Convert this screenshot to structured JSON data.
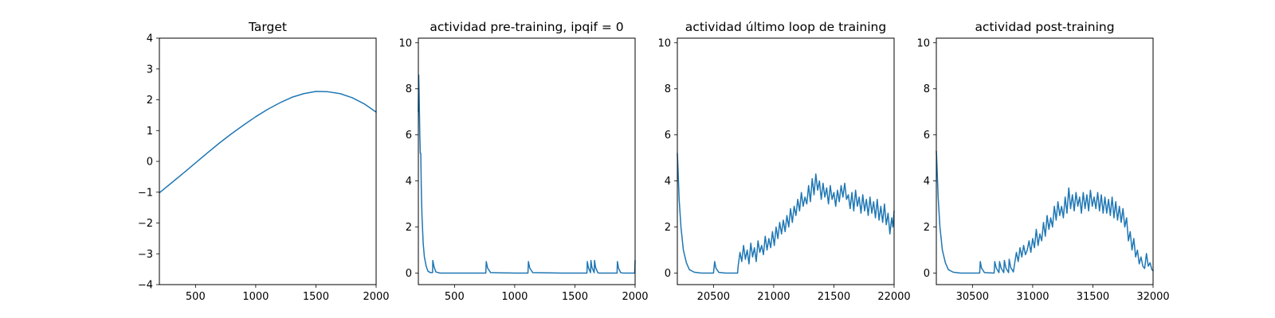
{
  "colors": {
    "series": "#1f77b4",
    "axes": "#000000",
    "background": "#ffffff"
  },
  "chart_data": [
    {
      "type": "line",
      "title": "Target",
      "xlabel": "",
      "ylabel": "",
      "xlim": [
        200,
        2000
      ],
      "ylim": [
        -4,
        4
      ],
      "xticks": [
        500,
        1000,
        1500,
        2000
      ],
      "xtick_labels": [
        "500",
        "1000",
        "1500",
        "2000"
      ],
      "yticks": [
        -4,
        -3,
        -2,
        -1,
        0,
        1,
        2,
        3,
        4
      ],
      "ytick_labels": [
        "−4",
        "−3",
        "−2",
        "−1",
        "0",
        "1",
        "2",
        "3",
        "4"
      ],
      "grid": false,
      "series": [
        {
          "x": [
            200,
            300,
            400,
            500,
            600,
            700,
            800,
            900,
            1000,
            1100,
            1200,
            1300,
            1400,
            1500,
            1600,
            1700,
            1800,
            1900,
            2000
          ],
          "y": [
            -1.02,
            -0.7,
            -0.38,
            -0.05,
            0.28,
            0.6,
            0.9,
            1.18,
            1.45,
            1.69,
            1.9,
            2.08,
            2.2,
            2.27,
            2.26,
            2.2,
            2.07,
            1.87,
            1.6
          ]
        }
      ]
    },
    {
      "type": "line",
      "title": "actividad pre-training, ipqif = 0",
      "xlabel": "",
      "ylabel": "",
      "xlim": [
        200,
        2000
      ],
      "ylim": [
        -0.5,
        10.2
      ],
      "xticks": [
        500,
        1000,
        1500,
        2000
      ],
      "xtick_labels": [
        "500",
        "1000",
        "1500",
        "2000"
      ],
      "yticks": [
        0,
        2,
        4,
        6,
        8,
        10
      ],
      "ytick_labels": [
        "0",
        "2",
        "4",
        "6",
        "8",
        "10"
      ],
      "grid": false,
      "series": [
        {
          "x": [
            200,
            203,
            207,
            212,
            216,
            220,
            225,
            230,
            240,
            250,
            265,
            280,
            300,
            318,
            320,
            330,
            345,
            380,
            500,
            760,
            764,
            775,
            800,
            1000,
            1110,
            1114,
            1125,
            1150,
            1390,
            1600,
            1603,
            1612,
            1630,
            1633,
            1642,
            1660,
            1663,
            1672,
            1690,
            1700,
            1850,
            1853,
            1862,
            1880,
            1900,
            1996,
            2000
          ],
          "y": [
            7.0,
            8.6,
            7.6,
            6.0,
            5.2,
            5.2,
            3.5,
            2.5,
            1.3,
            0.7,
            0.3,
            0.08,
            0.02,
            0.02,
            0.55,
            0.28,
            0.05,
            0.0,
            0.0,
            0.0,
            0.5,
            0.22,
            0.02,
            0.0,
            0.0,
            0.5,
            0.22,
            0.02,
            0.0,
            0.0,
            0.5,
            0.24,
            0.02,
            0.55,
            0.24,
            0.02,
            0.55,
            0.24,
            0.02,
            0.0,
            0.0,
            0.5,
            0.22,
            0.02,
            0.0,
            0.0,
            0.55
          ]
        }
      ]
    },
    {
      "type": "line",
      "title": "actividad último loop de training",
      "xlabel": "",
      "ylabel": "",
      "xlim": [
        20200,
        22000
      ],
      "ylim": [
        -0.5,
        10.2
      ],
      "xticks": [
        20500,
        21000,
        21500,
        22000
      ],
      "xtick_labels": [
        "20500",
        "21000",
        "21500",
        "22000"
      ],
      "yticks": [
        0,
        2,
        4,
        6,
        8,
        10
      ],
      "ytick_labels": [
        "0",
        "2",
        "4",
        "6",
        "8",
        "10"
      ],
      "grid": false,
      "series": [
        {
          "x": [
            20200,
            20205,
            20215,
            20230,
            20250,
            20275,
            20300,
            20340,
            20400,
            20500,
            20510,
            20520,
            20545,
            20600,
            20700,
            20705,
            20720,
            20735,
            20750,
            20765,
            20780,
            20795,
            20810,
            20825,
            20840,
            20855,
            20870,
            20885,
            20900,
            20915,
            20930,
            20945,
            20960,
            20975,
            20990,
            21005,
            21020,
            21035,
            21050,
            21065,
            21080,
            21095,
            21110,
            21125,
            21140,
            21155,
            21170,
            21185,
            21200,
            21215,
            21230,
            21245,
            21260,
            21275,
            21290,
            21305,
            21320,
            21335,
            21350,
            21365,
            21380,
            21395,
            21410,
            21425,
            21440,
            21455,
            21470,
            21485,
            21500,
            21515,
            21530,
            21545,
            21560,
            21575,
            21590,
            21605,
            21620,
            21635,
            21650,
            21665,
            21680,
            21695,
            21710,
            21725,
            21740,
            21755,
            21770,
            21785,
            21800,
            21815,
            21830,
            21845,
            21860,
            21875,
            21890,
            21905,
            21920,
            21935,
            21950,
            21965,
            21980,
            21990,
            22000
          ],
          "y": [
            5.2,
            4.6,
            3.2,
            2.0,
            1.0,
            0.45,
            0.15,
            0.04,
            0.0,
            0.0,
            0.5,
            0.22,
            0.03,
            0.0,
            0.0,
            0.3,
            0.9,
            0.5,
            1.2,
            0.6,
            1.0,
            0.4,
            1.3,
            0.7,
            1.1,
            0.5,
            1.4,
            0.9,
            1.2,
            0.8,
            1.6,
            1.0,
            1.5,
            1.1,
            1.8,
            1.2,
            2.0,
            1.5,
            2.2,
            1.7,
            2.3,
            1.8,
            2.5,
            2.0,
            2.8,
            2.2,
            2.9,
            2.5,
            3.2,
            2.7,
            3.5,
            2.9,
            3.3,
            3.0,
            3.8,
            3.1,
            4.1,
            3.4,
            4.3,
            3.6,
            4.0,
            3.2,
            3.9,
            3.3,
            3.7,
            3.0,
            3.8,
            3.2,
            3.5,
            2.9,
            3.6,
            3.1,
            3.8,
            3.3,
            3.9,
            3.2,
            3.4,
            2.8,
            3.5,
            2.7,
            3.6,
            2.9,
            3.3,
            2.6,
            3.4,
            2.7,
            3.2,
            2.5,
            3.3,
            2.6,
            3.1,
            2.4,
            3.2,
            2.3,
            2.9,
            2.2,
            3.0,
            2.1,
            2.6,
            1.7,
            2.4,
            2.0,
            2.7
          ]
        }
      ]
    },
    {
      "type": "line",
      "title": "actividad post-training",
      "xlabel": "",
      "ylabel": "",
      "xlim": [
        30200,
        32000
      ],
      "ylim": [
        -0.5,
        10.2
      ],
      "xticks": [
        30500,
        31000,
        31500,
        32000
      ],
      "xtick_labels": [
        "30500",
        "31000",
        "31500",
        "32000"
      ],
      "yticks": [
        0,
        2,
        4,
        6,
        8,
        10
      ],
      "ytick_labels": [
        "0",
        "2",
        "4",
        "6",
        "8",
        "10"
      ],
      "grid": false,
      "series": [
        {
          "x": [
            30200,
            30205,
            30215,
            30230,
            30250,
            30275,
            30300,
            30340,
            30400,
            30560,
            30565,
            30575,
            30600,
            30680,
            30685,
            30698,
            30720,
            30725,
            30738,
            30760,
            30765,
            30778,
            30800,
            30805,
            30818,
            30840,
            30850,
            30865,
            30880,
            30895,
            30910,
            30925,
            30940,
            30955,
            30970,
            30985,
            31000,
            31015,
            31030,
            31045,
            31060,
            31075,
            31090,
            31105,
            31120,
            31135,
            31150,
            31165,
            31180,
            31195,
            31210,
            31225,
            31240,
            31255,
            31270,
            31285,
            31300,
            31315,
            31330,
            31345,
            31360,
            31375,
            31390,
            31405,
            31420,
            31435,
            31450,
            31465,
            31480,
            31495,
            31510,
            31525,
            31540,
            31555,
            31570,
            31585,
            31600,
            31615,
            31630,
            31645,
            31660,
            31675,
            31690,
            31705,
            31720,
            31735,
            31750,
            31765,
            31780,
            31795,
            31810,
            31825,
            31840,
            31855,
            31870,
            31885,
            31900,
            31915,
            31930,
            31945,
            31960,
            31975,
            31990,
            32000
          ],
          "y": [
            5.3,
            4.7,
            3.3,
            2.0,
            1.0,
            0.45,
            0.15,
            0.04,
            0.0,
            0.0,
            0.5,
            0.22,
            0.02,
            0.0,
            0.5,
            0.22,
            0.02,
            0.5,
            0.22,
            0.02,
            0.55,
            0.22,
            0.02,
            0.6,
            0.24,
            0.05,
            0.4,
            0.9,
            0.5,
            1.1,
            0.7,
            1.2,
            0.8,
            1.0,
            1.4,
            0.9,
            1.5,
            1.1,
            1.9,
            1.2,
            1.7,
            1.4,
            2.2,
            1.6,
            2.5,
            1.9,
            2.4,
            2.0,
            2.9,
            2.3,
            3.1,
            2.5,
            2.9,
            2.4,
            3.3,
            2.6,
            3.7,
            2.8,
            3.4,
            2.7,
            3.5,
            2.9,
            3.3,
            2.6,
            3.5,
            2.8,
            3.4,
            2.7,
            3.6,
            2.9,
            3.3,
            2.8,
            3.5,
            2.7,
            3.4,
            2.6,
            3.3,
            2.6,
            3.2,
            2.5,
            3.3,
            2.4,
            3.1,
            2.3,
            2.9,
            2.2,
            2.8,
            2.0,
            2.4,
            1.4,
            1.8,
            1.0,
            1.5,
            0.7,
            1.0,
            0.4,
            0.7,
            0.3,
            0.2,
            0.85,
            0.3,
            0.45,
            0.15,
            0.1
          ]
        }
      ]
    }
  ]
}
